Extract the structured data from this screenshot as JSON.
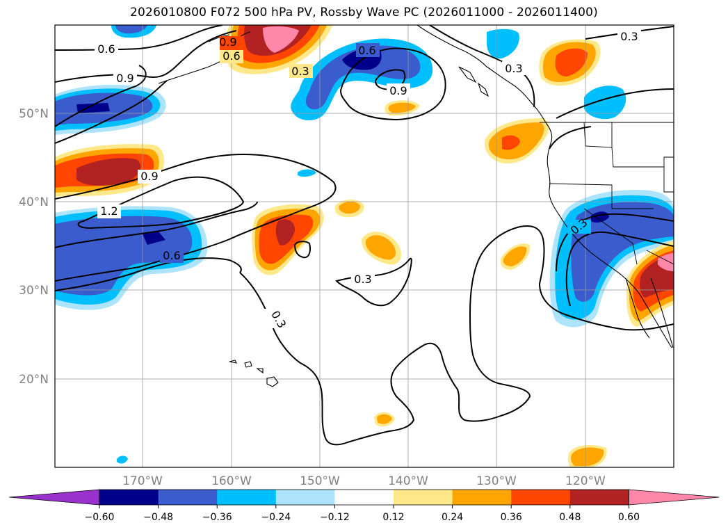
{
  "title": "2026010800 F072 500 hPa PV, Rossby Wave PC (2026011000 - 2026011400)",
  "lat_labels": [
    "50°N",
    "40°N",
    "30°N",
    "20°N"
  ],
  "lon_labels": [
    "170°W",
    "160°W",
    "150°W",
    "140°W",
    "130°W",
    "120°W"
  ],
  "contour_labels": [
    "0.6",
    "0.9",
    "0.6",
    "0.3",
    "0.6",
    "0.9",
    "0.3",
    "0.3",
    "0.9",
    "0.9",
    "1.2",
    "0.6",
    "0.3",
    "0.3",
    "0.3"
  ],
  "colorbar": {
    "ticks": [
      "−0.60",
      "−0.48",
      "−0.36",
      "−0.24",
      "−0.12",
      "0.12",
      "0.24",
      "0.36",
      "0.48",
      "0.60"
    ],
    "colors": [
      "#9932cc",
      "#00008b",
      "#3a5ccc",
      "#00bfff",
      "#aee4fb",
      "#ffffff",
      "#ffe88a",
      "#ffa500",
      "#ff4500",
      "#b22222",
      "#ff88aa"
    ]
  },
  "palette": {
    "deep_purple": "#9932cc",
    "navy": "#00008b",
    "royal_blue": "#3a5ccc",
    "sky": "#00bfff",
    "pale_blue": "#aee4fb",
    "pale_yellow": "#ffe88a",
    "orange": "#ffa500",
    "red_orange": "#ff4500",
    "firebrick": "#b22222",
    "pink": "#ff88aa"
  }
}
